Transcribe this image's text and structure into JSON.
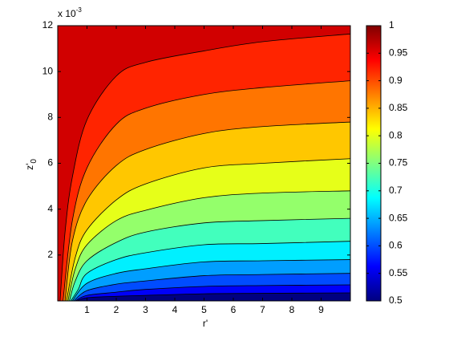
{
  "chart_data": {
    "type": "contour",
    "colormap": "jet",
    "xlim": [
      0,
      10
    ],
    "ylim": [
      0,
      0.012
    ],
    "xticks": [
      1,
      2,
      3,
      4,
      5,
      6,
      7,
      8,
      9
    ],
    "yticks": [
      {
        "value": 0.002,
        "label": "2"
      },
      {
        "value": 0.004,
        "label": "4"
      },
      {
        "value": 0.006,
        "label": "6"
      },
      {
        "value": 0.008,
        "label": "8"
      },
      {
        "value": 0.01,
        "label": "10"
      },
      {
        "value": 0.012,
        "label": "12"
      }
    ],
    "y_multiplier": "x 10",
    "y_multiplier_exponent": "-3",
    "xlabel": "r'",
    "ylabel": "z'",
    "ylabel_subscript": "0",
    "clim": [
      0.5,
      1
    ],
    "colorbar_ticks": [
      0.5,
      0.55,
      0.6,
      0.65,
      0.7,
      0.75,
      0.8,
      0.85,
      0.9,
      0.95,
      1
    ],
    "contours": [
      {
        "level": 0.56,
        "x": [
          0.65,
          1,
          2,
          3,
          5,
          7,
          10
        ],
        "y": [
          0,
          0.00014,
          0.0002,
          0.00024,
          0.00031,
          0.00033,
          0.00035
        ]
      },
      {
        "level": 0.6,
        "x": [
          0.6,
          1,
          2,
          3,
          5,
          7,
          10
        ],
        "y": [
          0,
          0.00024,
          0.00038,
          0.0005,
          0.00063,
          0.00067,
          0.0007
        ]
      },
      {
        "level": 0.64,
        "x": [
          0.55,
          1,
          2,
          3,
          5,
          7,
          10
        ],
        "y": [
          0,
          0.00045,
          0.00073,
          0.00087,
          0.0011,
          0.00115,
          0.0012
        ]
      },
      {
        "level": 0.68,
        "x": [
          0.5,
          1,
          2,
          3,
          5,
          7,
          10
        ],
        "y": [
          0,
          0.00077,
          0.0012,
          0.0014,
          0.0017,
          0.00175,
          0.0018
        ]
      },
      {
        "level": 0.72,
        "x": [
          0.45,
          0.7,
          1,
          2,
          3,
          5,
          7,
          10
        ],
        "y": [
          0,
          0.0005,
          0.0012,
          0.0018,
          0.0021,
          0.00245,
          0.0025,
          0.0026
        ]
      },
      {
        "level": 0.76,
        "x": [
          0.4,
          0.6,
          1,
          2,
          3,
          5,
          7,
          10
        ],
        "y": [
          0,
          0.00087,
          0.00175,
          0.00255,
          0.003,
          0.0034,
          0.0035,
          0.0036
        ]
      },
      {
        "level": 0.8,
        "x": [
          0.35,
          0.6,
          1,
          2,
          3,
          5,
          7,
          10
        ],
        "y": [
          0,
          0.0014,
          0.00245,
          0.0035,
          0.00395,
          0.0045,
          0.0047,
          0.0048
        ]
      },
      {
        "level": 0.84,
        "x": [
          0.3,
          0.6,
          1,
          2,
          3,
          5,
          7,
          10
        ],
        "y": [
          0,
          0.0019,
          0.0031,
          0.0044,
          0.0051,
          0.0058,
          0.006,
          0.0062
        ]
      },
      {
        "level": 0.88,
        "x": [
          0.25,
          0.5,
          1,
          2,
          3,
          5,
          7,
          10
        ],
        "y": [
          0,
          0.0026,
          0.0044,
          0.0059,
          0.0066,
          0.0073,
          0.0076,
          0.0078
        ]
      },
      {
        "level": 0.92,
        "x": [
          0.18,
          0.5,
          1,
          2,
          3,
          5,
          7,
          10
        ],
        "y": [
          0,
          0.0035,
          0.0058,
          0.0077,
          0.0084,
          0.009,
          0.0093,
          0.0096
        ]
      },
      {
        "level": 0.96,
        "x": [
          0.08,
          0.25,
          0.5,
          1,
          2,
          3,
          5,
          7,
          10
        ],
        "y": [
          0,
          0.003,
          0.0054,
          0.0079,
          0.0098,
          0.0104,
          0.0109,
          0.0113,
          0.01164
        ]
      }
    ]
  }
}
